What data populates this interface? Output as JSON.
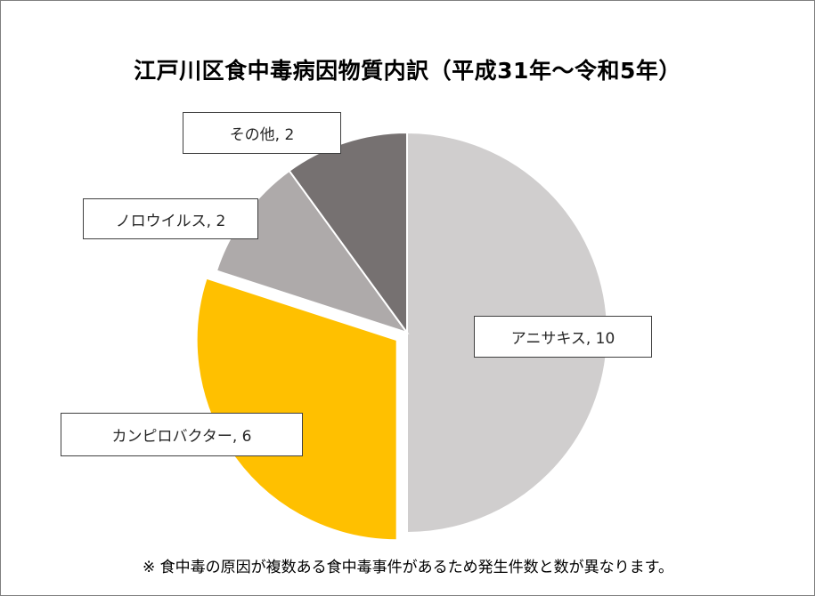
{
  "chart_data": {
    "type": "pie",
    "title": "江戸川区食中毒病因物質内訳（平成31年～令和5年）",
    "slices": [
      {
        "name": "アニサキス",
        "value": 10,
        "label": "アニサキス, 10",
        "color": "#d0cece"
      },
      {
        "name": "カンピロバクター",
        "value": 6,
        "label": "カンピロバクター, 6",
        "color": "#ffc000",
        "exploded": true
      },
      {
        "name": "ノロウイルス",
        "value": 2,
        "label": "ノロウイルス, 2",
        "color": "#aeaaaa"
      },
      {
        "name": "その他",
        "value": 2,
        "label": "その他, 2",
        "color": "#767171"
      }
    ],
    "start": "12 o'clock",
    "direction": "clockwise",
    "legend": "none"
  },
  "note": "※ 食中毒の原因が複数ある食中毒事件があるため発生件数と数が異なります。"
}
